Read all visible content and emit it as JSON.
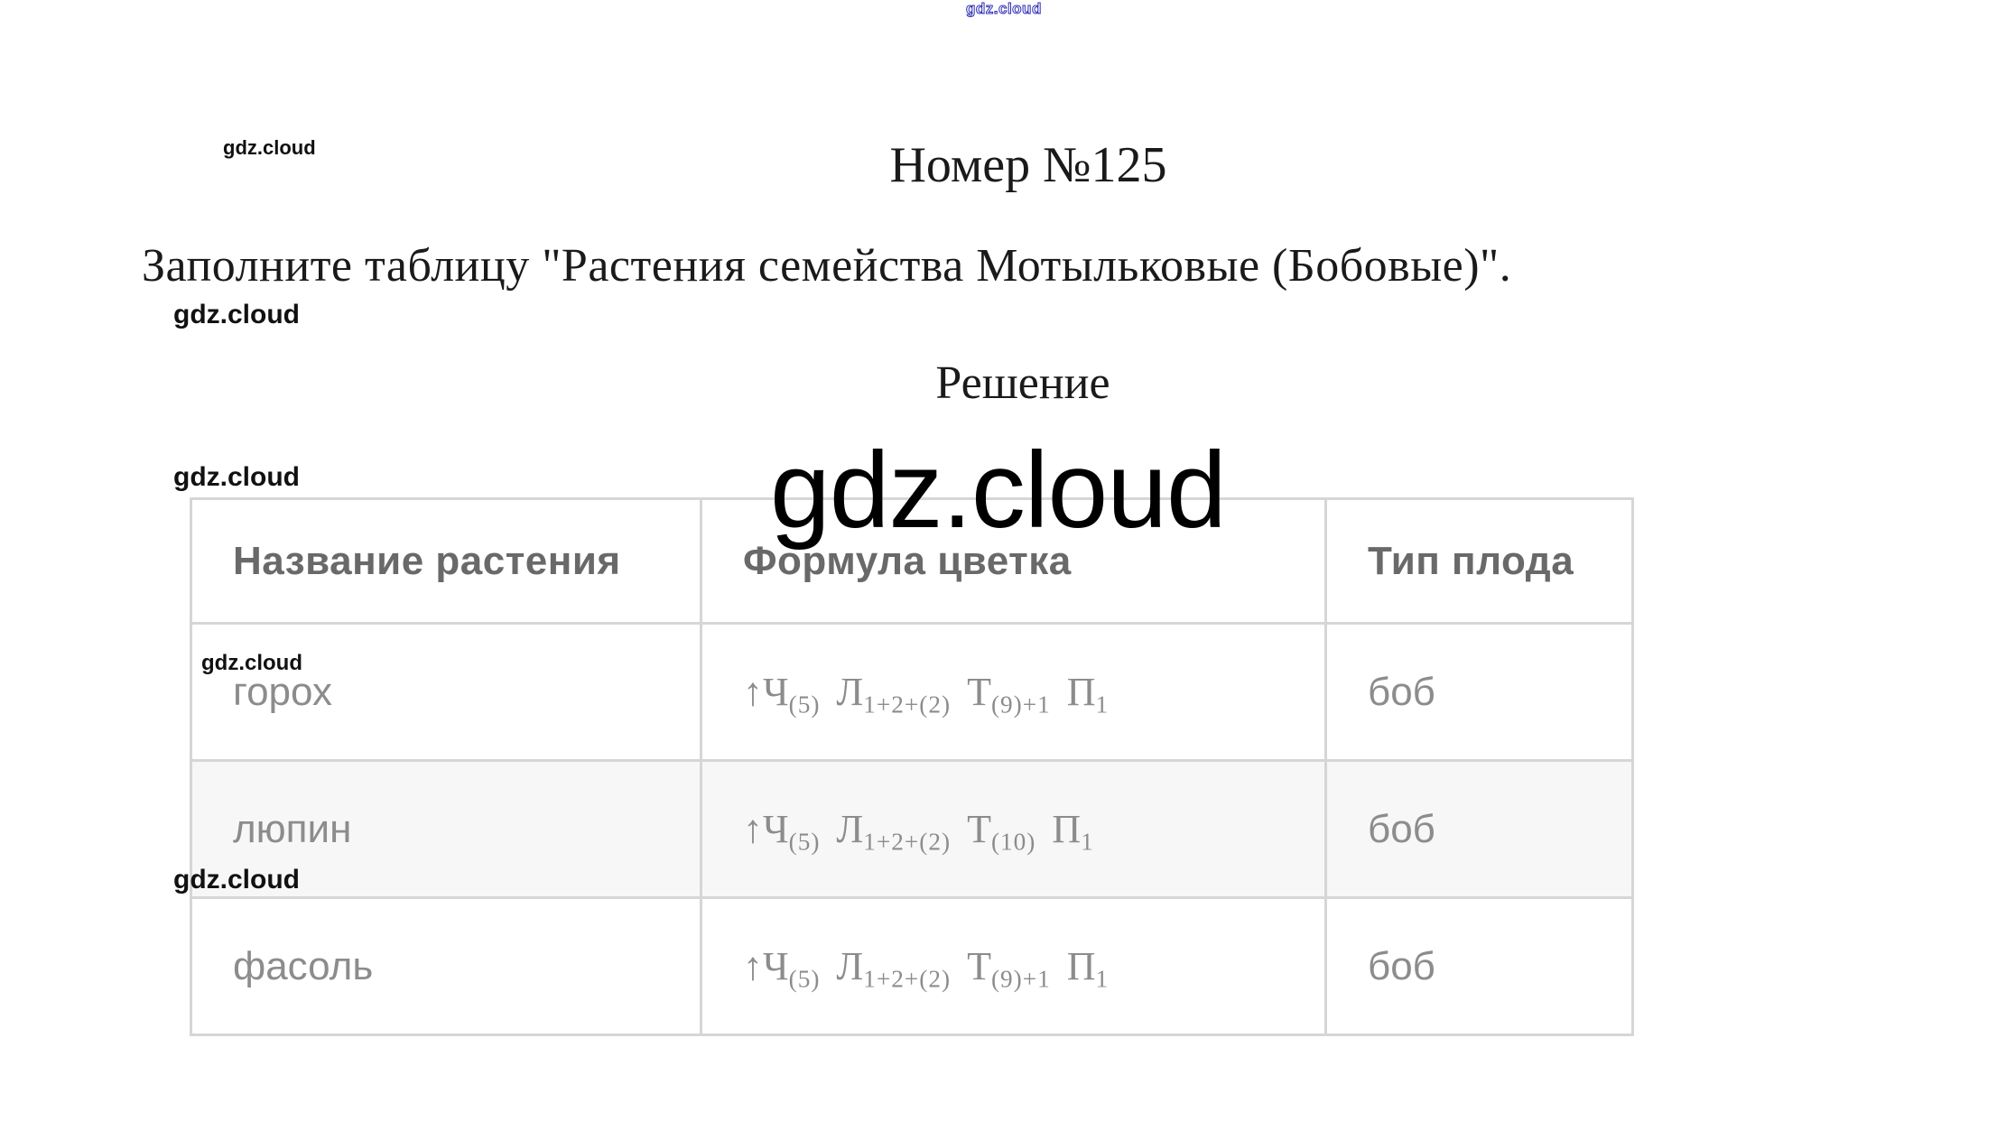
{
  "watermark": {
    "label": "gdz.cloud"
  },
  "document": {
    "title": "Номер №125",
    "task": "Заполните таблицу \"Растения семейства Мотыльковые (Бобовые)\".",
    "solution_heading": "Решение"
  },
  "table": {
    "headers": [
      "Название растения",
      "Формула цветка",
      "Тип плода"
    ],
    "rows": [
      {
        "name": "горох",
        "formula": [
          {
            "base": "↑Ч",
            "sub": "(5)"
          },
          {
            "base": "Л",
            "sub": "1+2+(2)"
          },
          {
            "base": "Т",
            "sub": "(9)+1"
          },
          {
            "base": "П",
            "sub": "1"
          }
        ],
        "fruit": "боб"
      },
      {
        "name": "люпин",
        "formula": [
          {
            "base": "↑Ч",
            "sub": "(5)"
          },
          {
            "base": "Л",
            "sub": "1+2+(2)"
          },
          {
            "base": "Т",
            "sub": "(10)"
          },
          {
            "base": "П",
            "sub": "1"
          }
        ],
        "fruit": "боб"
      },
      {
        "name": "фасоль",
        "formula": [
          {
            "base": "↑Ч",
            "sub": "(5)"
          },
          {
            "base": "Л",
            "sub": "1+2+(2)"
          },
          {
            "base": "Т",
            "sub": "(9)+1"
          },
          {
            "base": "П",
            "sub": "1"
          }
        ],
        "fruit": "боб"
      }
    ]
  },
  "colors": {
    "watermark_blue": "#2d2db5",
    "watermark_black": "#111111",
    "table_border": "#d6d6d6",
    "row_alt_background": "#f7f7f7",
    "header_text": "#696969",
    "cell_text": "#8c8c8c",
    "formula_text": "#5c5c60"
  }
}
